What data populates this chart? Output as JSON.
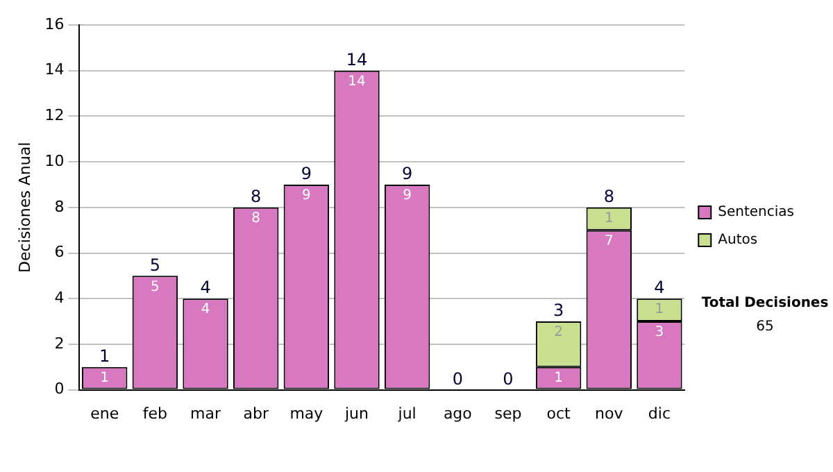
{
  "chart_data": {
    "type": "bar",
    "stacked": true,
    "ylabel": "Decisiones Anual",
    "categories": [
      "ene",
      "feb",
      "mar",
      "abr",
      "may",
      "jun",
      "jul",
      "ago",
      "sep",
      "oct",
      "nov",
      "dic"
    ],
    "series": [
      {
        "name": "Sentencias",
        "color": "#d878c0",
        "values": [
          1,
          5,
          4,
          8,
          9,
          14,
          9,
          0,
          0,
          1,
          7,
          3
        ],
        "value_labels": [
          "1",
          "5",
          "4",
          "8",
          "9",
          "14",
          "9",
          null,
          null,
          "1",
          "7",
          "3"
        ]
      },
      {
        "name": "Autos",
        "color": "#c8e090",
        "values": [
          0,
          0,
          0,
          0,
          0,
          0,
          0,
          0,
          0,
          2,
          1,
          1
        ],
        "value_labels": [
          null,
          null,
          null,
          null,
          null,
          null,
          null,
          null,
          null,
          "2",
          "1",
          "1"
        ]
      }
    ],
    "totals": [
      "1",
      "5",
      "4",
      "8",
      "9",
      "14",
      "9",
      "0",
      "0",
      "3",
      "8",
      "4"
    ],
    "ylim": [
      0,
      16
    ],
    "yticks": [
      0,
      2,
      4,
      6,
      8,
      10,
      12,
      14,
      16
    ],
    "grid": "y",
    "legend": "right",
    "annotations": [
      "Total Decisiones",
      "65"
    ]
  }
}
